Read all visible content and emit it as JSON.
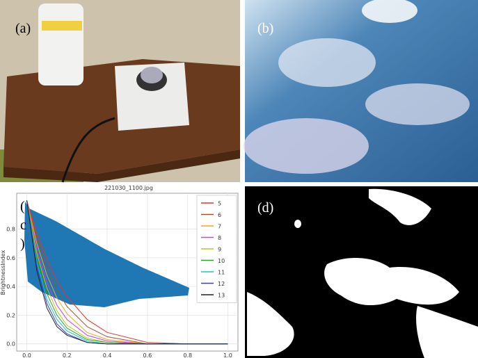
{
  "panel_labels": {
    "a": "(a)",
    "b": "(b)",
    "c": [
      "(",
      "c",
      ")"
    ],
    "d": "(d)"
  },
  "chart_data": {
    "type": "line",
    "title": "221030_1100.jpg",
    "y_label": "BrightnessIndex",
    "x": [
      0,
      0.05,
      0.1,
      0.15,
      0.2,
      0.3,
      0.4,
      0.6,
      0.8,
      1.0
    ],
    "series": [
      {
        "name": "5",
        "color": "#e8342a",
        "values": [
          1,
          0.77,
          0.59,
          0.44,
          0.33,
          0.17,
          0.08,
          0.01,
          0,
          0
        ]
      },
      {
        "name": "6",
        "color": "#a0522d",
        "values": [
          1,
          0.74,
          0.53,
          0.38,
          0.26,
          0.12,
          0.05,
          0,
          0,
          0
        ]
      },
      {
        "name": "7",
        "color": "#f5a623",
        "values": [
          1,
          0.7,
          0.48,
          0.32,
          0.21,
          0.08,
          0.03,
          0,
          0,
          0
        ]
      },
      {
        "name": "8",
        "color": "#d63fd6",
        "values": [
          1,
          0.66,
          0.43,
          0.27,
          0.17,
          0.06,
          0.02,
          0,
          0,
          0
        ]
      },
      {
        "name": "9",
        "color": "#b5cc18",
        "values": [
          1,
          0.63,
          0.39,
          0.23,
          0.13,
          0.04,
          0.01,
          0,
          0,
          0
        ]
      },
      {
        "name": "10",
        "color": "#2e9e2e",
        "values": [
          1,
          0.6,
          0.35,
          0.2,
          0.11,
          0.03,
          0.01,
          0,
          0,
          0
        ]
      },
      {
        "name": "11",
        "color": "#20c0c0",
        "values": [
          1,
          0.57,
          0.31,
          0.17,
          0.09,
          0.02,
          0,
          0,
          0,
          0
        ]
      },
      {
        "name": "12",
        "color": "#2a3fd6",
        "values": [
          1,
          0.54,
          0.28,
          0.14,
          0.07,
          0.01,
          0,
          0,
          0,
          0
        ]
      },
      {
        "name": "13",
        "color": "#222222",
        "values": [
          1,
          0.51,
          0.25,
          0.12,
          0.06,
          0.01,
          0,
          0,
          0,
          0
        ]
      }
    ],
    "xlim": [
      -0.05,
      1.05
    ],
    "ylim": [
      -0.05,
      1.05
    ],
    "xticks": [
      {
        "value": 0,
        "label": "0.0"
      },
      0.2,
      0.4,
      0.6,
      0.8,
      {
        "value": 1,
        "label": "1.0"
      }
    ],
    "yticks": [
      {
        "value": 0,
        "label": "0.0"
      },
      0.2,
      0.4,
      0.6,
      0.8
    ],
    "grid": true,
    "legend": "upper right"
  }
}
